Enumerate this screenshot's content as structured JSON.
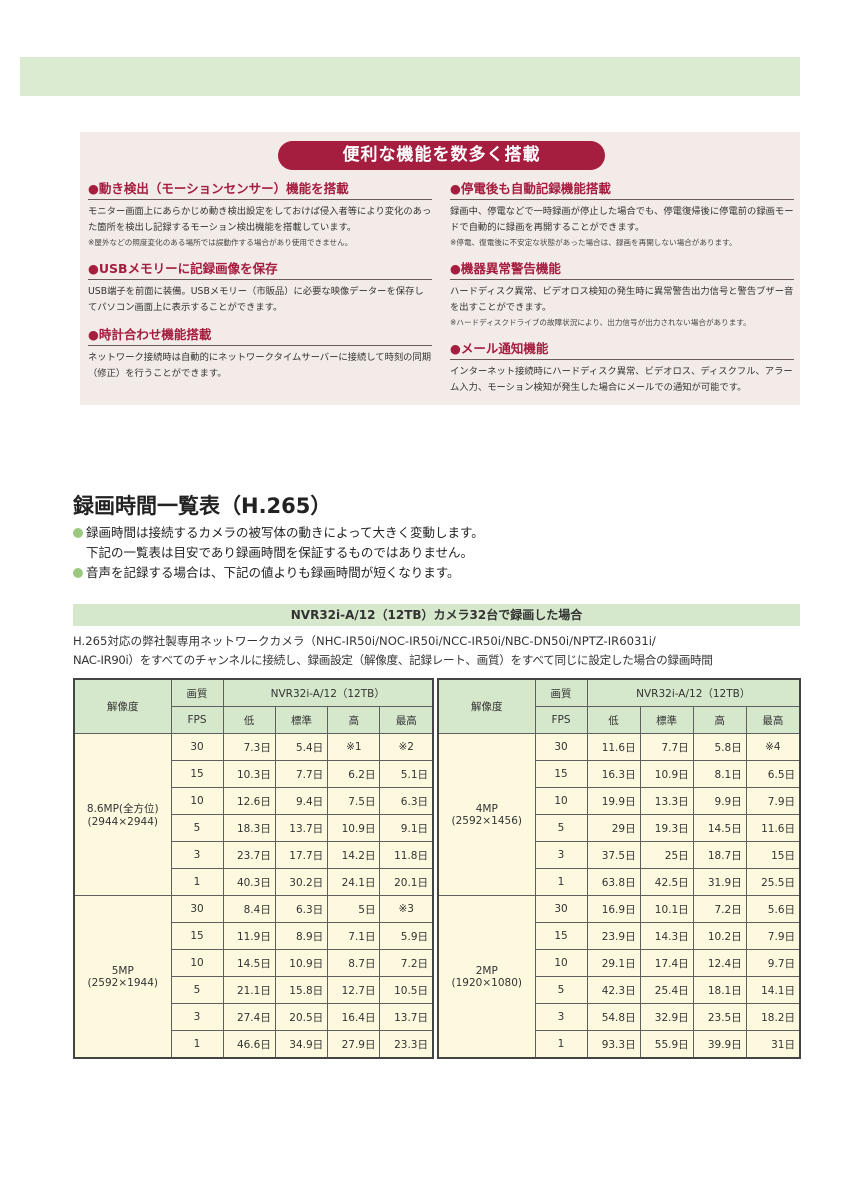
{
  "features": {
    "banner": "便利な機能を数多く搭載",
    "left": [
      {
        "heading": "●動き検出（モーションセンサー）機能を搭載",
        "body": "モニター画面上にあらかじめ動き検出設定をしておけば侵入者等により変化のあった箇所を検出し記録するモーション検出機能を搭載しています。",
        "note": "※屋外などの照度変化のある場所では誤動作する場合があり使用できません。"
      },
      {
        "heading": "●USBメモリーに記録画像を保存",
        "body": "USB端子を前面に装備。USBメモリー（市販品）に必要な映像データーを保存してパソコン画面上に表示することができます。",
        "note": ""
      },
      {
        "heading": "●時計合わせ機能搭載",
        "body": "ネットワーク接続時は自動的にネットワークタイムサーバーに接続して時刻の同期（修正）を行うことができます。",
        "note": ""
      }
    ],
    "right": [
      {
        "heading": "●停電後も自動記録機能搭載",
        "body": "録画中、停電などで一時録画が停止した場合でも、停電復帰後に停電前の録画モードで自動的に録画を再開することができます。",
        "note": "※停電、復電後に不安定な状態があった場合は、録画を再開しない場合があります。"
      },
      {
        "heading": "●機器異常警告機能",
        "body": "ハードディスク異常、ビデオロス検知の発生時に異常警告出力信号と警告ブザー音を出すことができます。",
        "note": "※ハードディスクドライブの故障状況により、出力信号が出力されない場合があります。"
      },
      {
        "heading": "●メール通知機能",
        "body": "インターネット接続時にハードディスク異常、ビデオロス、ディスクフル、アラーム入力、モーション検知が発生した場合にメールでの通知が可能です。",
        "note": ""
      }
    ]
  },
  "recording": {
    "title": "録画時間一覧表（H.265）",
    "bullets": [
      "録画時間は接続するカメラの被写体の動きによって大きく変動します。",
      "下記の一覧表は目安であり録画時間を保証するものではありません。",
      "音声を記録する場合は、下記の値よりも録画時間が短くなります。"
    ],
    "subtitle": "NVR32i-A/12（12TB）カメラ32台で録画した場合",
    "description": [
      "H.265対応の弊社製専用ネットワークカメラ（NHC-IR50i/NOC-IR50i/NCC-IR50i/NBC-DN50i/NPTZ-IR6031i/",
      "NAC-IR90i）をすべてのチャンネルに接続し、録画設定（解像度、記録レート、画質）をすべて同じに設定した場合の録画時間"
    ],
    "header": {
      "resolution": "解像度",
      "quality": "画質",
      "fps": "FPS",
      "model": "NVR32i-A/12（12TB）",
      "levels": [
        "低",
        "標準",
        "高",
        "最高"
      ]
    },
    "tables": [
      [
        {
          "name": "8.6MP(全方位)",
          "size": "(2944×2944)",
          "rows": [
            [
              "30",
              "7.3日",
              "5.4日",
              "※1",
              "※2"
            ],
            [
              "15",
              "10.3日",
              "7.7日",
              "6.2日",
              "5.1日"
            ],
            [
              "10",
              "12.6日",
              "9.4日",
              "7.5日",
              "6.3日"
            ],
            [
              "5",
              "18.3日",
              "13.7日",
              "10.9日",
              "9.1日"
            ],
            [
              "3",
              "23.7日",
              "17.7日",
              "14.2日",
              "11.8日"
            ],
            [
              "1",
              "40.3日",
              "30.2日",
              "24.1日",
              "20.1日"
            ]
          ]
        },
        {
          "name": "5MP",
          "size": "(2592×1944)",
          "rows": [
            [
              "30",
              "8.4日",
              "6.3日",
              "5日",
              "※3"
            ],
            [
              "15",
              "11.9日",
              "8.9日",
              "7.1日",
              "5.9日"
            ],
            [
              "10",
              "14.5日",
              "10.9日",
              "8.7日",
              "7.2日"
            ],
            [
              "5",
              "21.1日",
              "15.8日",
              "12.7日",
              "10.5日"
            ],
            [
              "3",
              "27.4日",
              "20.5日",
              "16.4日",
              "13.7日"
            ],
            [
              "1",
              "46.6日",
              "34.9日",
              "27.9日",
              "23.3日"
            ]
          ]
        }
      ],
      [
        {
          "name": "4MP",
          "size": "(2592×1456)",
          "rows": [
            [
              "30",
              "11.6日",
              "7.7日",
              "5.8日",
              "※4"
            ],
            [
              "15",
              "16.3日",
              "10.9日",
              "8.1日",
              "6.5日"
            ],
            [
              "10",
              "19.9日",
              "13.3日",
              "9.9日",
              "7.9日"
            ],
            [
              "5",
              "29日",
              "19.3日",
              "14.5日",
              "11.6日"
            ],
            [
              "3",
              "37.5日",
              "25日",
              "18.7日",
              "15日"
            ],
            [
              "1",
              "63.8日",
              "42.5日",
              "31.9日",
              "25.5日"
            ]
          ]
        },
        {
          "name": "2MP",
          "size": "(1920×1080)",
          "rows": [
            [
              "30",
              "16.9日",
              "10.1日",
              "7.2日",
              "5.6日"
            ],
            [
              "15",
              "23.9日",
              "14.3日",
              "10.2日",
              "7.9日"
            ],
            [
              "10",
              "29.1日",
              "17.4日",
              "12.4日",
              "9.7日"
            ],
            [
              "5",
              "42.3日",
              "25.4日",
              "18.1日",
              "14.1日"
            ],
            [
              "3",
              "54.8日",
              "32.9日",
              "23.5日",
              "18.2日"
            ],
            [
              "1",
              "93.3日",
              "55.9日",
              "39.9日",
              "31日"
            ]
          ]
        }
      ]
    ]
  },
  "colors": {
    "accent": "#a51d3f",
    "green_band": "#d5e8cc",
    "cell": "#fdf9de"
  }
}
